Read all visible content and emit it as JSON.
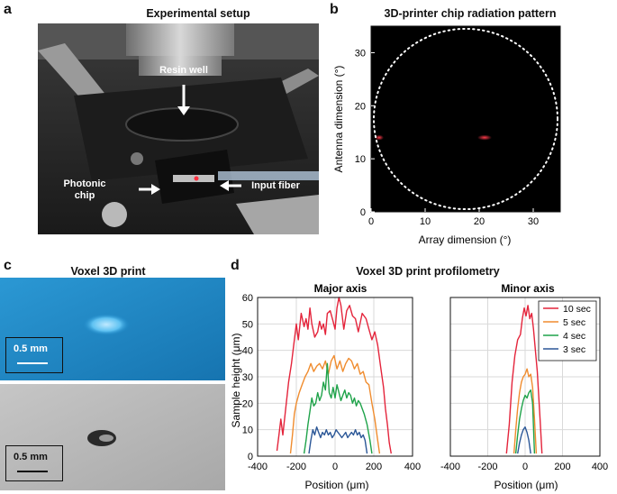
{
  "panels": {
    "a": {
      "letter": "a",
      "title": "Experimental setup",
      "labels": {
        "resin_well": "Resin well",
        "photonic_chip": "Photonic\nchip",
        "input_fiber": "Input fiber"
      }
    },
    "b": {
      "letter": "b",
      "title": "3D-printer chip radiation pattern"
    },
    "c": {
      "letter": "c",
      "title": "Voxel 3D print",
      "scalebar_top": "0.5 mm",
      "scalebar_bottom": "0.5 mm"
    },
    "d": {
      "letter": "d",
      "title": "Voxel 3D print profilometry"
    }
  },
  "colors": {
    "red": "#e4243b",
    "orange": "#f08c2e",
    "green": "#1fa34a",
    "blue": "#2b5797",
    "blue_photo": "#1e8fd0"
  },
  "chart_data": [
    {
      "id": "b",
      "type": "heatmap",
      "title": "3D-printer chip radiation pattern",
      "xlabel": "Array dimension (°)",
      "ylabel": "Antenna dimension (°)",
      "xlim": [
        0,
        35
      ],
      "ylim": [
        0,
        35
      ],
      "xticks": [
        0,
        10,
        20,
        30
      ],
      "yticks": [
        0,
        10,
        20,
        30
      ],
      "spots": [
        {
          "x": 21,
          "y": 14
        },
        {
          "x": 1.5,
          "y": 14
        }
      ],
      "boundary_circle": {
        "cx": 17.5,
        "cy": 17.5,
        "r": 17
      }
    },
    {
      "id": "d-major",
      "type": "line",
      "title": "Major axis",
      "xlabel": "Position (μm)",
      "ylabel": "Sample height (μm)",
      "xlim": [
        -400,
        400
      ],
      "ylim": [
        0,
        60
      ],
      "xticks": [
        -400,
        -200,
        0,
        200,
        400
      ],
      "yticks": [
        0,
        10,
        20,
        30,
        40,
        50,
        60
      ],
      "series": [
        {
          "name": "10 sec",
          "color": "#e4243b",
          "x": [
            -300,
            -290,
            -280,
            -270,
            -255,
            -240,
            -225,
            -210,
            -200,
            -190,
            -175,
            -160,
            -150,
            -140,
            -130,
            -120,
            -105,
            -90,
            -80,
            -70,
            -60,
            -50,
            -40,
            -25,
            -10,
            0,
            10,
            20,
            30,
            45,
            60,
            75,
            90,
            105,
            120,
            140,
            160,
            175,
            190,
            205,
            220,
            235,
            250,
            260,
            270,
            280,
            290
          ],
          "y": [
            2,
            8,
            14,
            8,
            18,
            28,
            35,
            44,
            50,
            44,
            54,
            49,
            52,
            48,
            56,
            50,
            45,
            47,
            51,
            48,
            50,
            46,
            54,
            55,
            51,
            48,
            56,
            60,
            57,
            48,
            55,
            57,
            53,
            52,
            47,
            54,
            52,
            48,
            44,
            47,
            42,
            34,
            26,
            18,
            12,
            5,
            1
          ]
        },
        {
          "name": "5 sec",
          "color": "#f08c2e",
          "x": [
            -230,
            -220,
            -210,
            -200,
            -185,
            -170,
            -155,
            -140,
            -125,
            -110,
            -95,
            -80,
            -65,
            -50,
            -35,
            -20,
            -5,
            10,
            25,
            40,
            55,
            70,
            85,
            100,
            115,
            130,
            145,
            160,
            175,
            190,
            205,
            220,
            230
          ],
          "y": [
            1,
            8,
            16,
            20,
            24,
            27,
            30,
            32,
            35,
            32,
            34,
            35,
            33,
            36,
            31,
            36,
            38,
            33,
            36,
            32,
            35,
            37,
            36,
            33,
            35,
            31,
            32,
            28,
            27,
            20,
            14,
            6,
            1
          ]
        },
        {
          "name": "4 sec",
          "color": "#1fa34a",
          "x": [
            -160,
            -150,
            -140,
            -130,
            -120,
            -110,
            -100,
            -90,
            -80,
            -70,
            -60,
            -50,
            -40,
            -30,
            -20,
            -10,
            0,
            10,
            20,
            30,
            40,
            50,
            60,
            70,
            80,
            90,
            100,
            110,
            120,
            130,
            140,
            150,
            165,
            180,
            190
          ],
          "y": [
            1,
            6,
            12,
            17,
            22,
            19,
            20,
            24,
            21,
            23,
            28,
            25,
            35,
            24,
            22,
            26,
            22,
            27,
            24,
            21,
            23,
            25,
            22,
            24,
            23,
            20,
            22,
            19,
            21,
            20,
            18,
            16,
            12,
            6,
            1
          ]
        },
        {
          "name": "3 sec",
          "color": "#2b5797",
          "x": [
            -135,
            -125,
            -115,
            -105,
            -95,
            -85,
            -75,
            -65,
            -55,
            -45,
            -35,
            -25,
            -15,
            -5,
            5,
            15,
            25,
            35,
            45,
            55,
            65,
            75,
            85,
            95,
            105,
            115,
            125,
            135,
            145,
            155,
            165
          ],
          "y": [
            1,
            6,
            10,
            8,
            11,
            9,
            7,
            9,
            8,
            10,
            8,
            9,
            7,
            8,
            10,
            9,
            8,
            7,
            8,
            9,
            7,
            8,
            9,
            8,
            10,
            8,
            9,
            7,
            8,
            6,
            1
          ]
        }
      ]
    },
    {
      "id": "d-minor",
      "type": "line",
      "title": "Minor axis",
      "xlabel": "Position (μm)",
      "ylabel": "",
      "xlim": [
        -400,
        400
      ],
      "ylim": [
        0,
        60
      ],
      "xticks": [
        -400,
        -200,
        0,
        200,
        400
      ],
      "yticks": [
        0,
        10,
        20,
        30,
        40,
        50,
        60
      ],
      "legend": "top-right",
      "series": [
        {
          "name": "10 sec",
          "color": "#e4243b",
          "x": [
            -100,
            -85,
            -70,
            -55,
            -40,
            -25,
            -15,
            -5,
            5,
            15,
            25,
            35,
            45,
            55,
            65,
            80,
            90
          ],
          "y": [
            1,
            12,
            28,
            38,
            44,
            46,
            52,
            56,
            53,
            57,
            52,
            54,
            48,
            40,
            32,
            14,
            1
          ]
        },
        {
          "name": "5 sec",
          "color": "#f08c2e",
          "x": [
            -60,
            -50,
            -40,
            -30,
            -20,
            -10,
            0,
            10,
            20,
            30,
            40,
            50,
            60
          ],
          "y": [
            1,
            10,
            18,
            24,
            28,
            30,
            31,
            33,
            30,
            31,
            26,
            14,
            1
          ]
        },
        {
          "name": "4 sec",
          "color": "#1fa34a",
          "x": [
            -50,
            -40,
            -30,
            -20,
            -10,
            0,
            10,
            20,
            30,
            40,
            50
          ],
          "y": [
            1,
            8,
            14,
            18,
            21,
            23,
            22,
            24,
            25,
            20,
            1
          ]
        },
        {
          "name": "3 sec",
          "color": "#2b5797",
          "x": [
            -40,
            -30,
            -20,
            -10,
            0,
            10,
            20,
            30
          ],
          "y": [
            1,
            5,
            8,
            10,
            11,
            9,
            6,
            1
          ]
        }
      ]
    }
  ]
}
